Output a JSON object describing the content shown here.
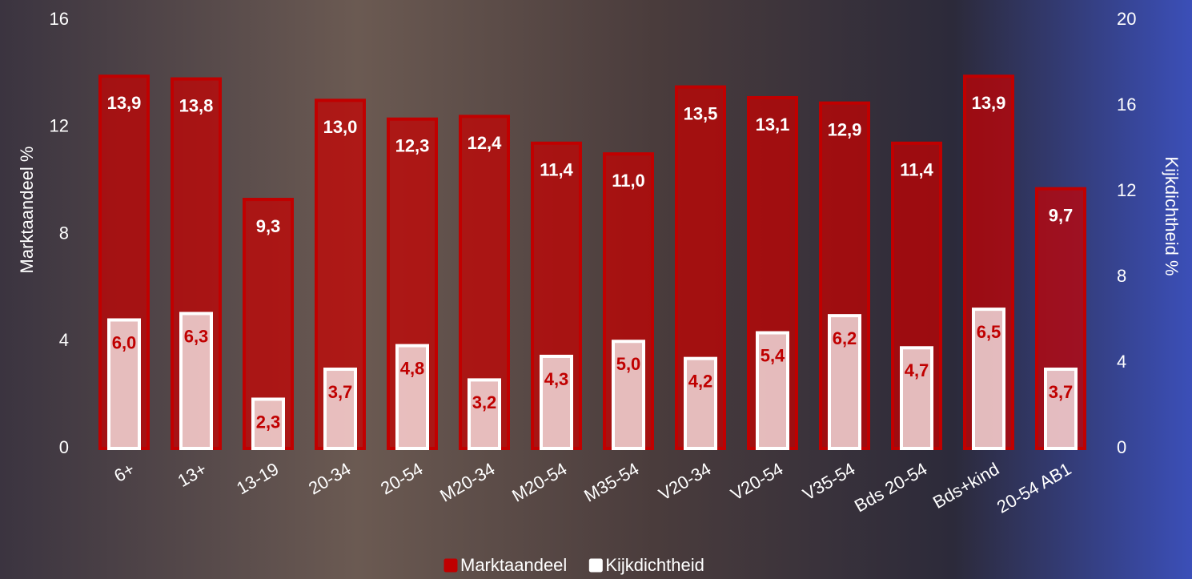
{
  "chart_data": {
    "type": "bar",
    "categories": [
      "6+",
      "13+",
      "13-19",
      "20-34",
      "20-54",
      "M20-34",
      "M20-54",
      "M35-54",
      "V20-34",
      "V20-54",
      "V35-54",
      "Bds 20-54",
      "Bds+kind",
      "20-54 AB1"
    ],
    "series": [
      {
        "name": "Marktaandeel",
        "color": "#c00000",
        "axis": "y",
        "values": [
          13.9,
          13.8,
          9.3,
          13.0,
          12.3,
          12.4,
          11.4,
          11.0,
          13.5,
          13.1,
          12.9,
          11.4,
          13.9,
          9.7
        ],
        "value_labels": [
          "13,9",
          "13,8",
          "9,3",
          "13,0",
          "12,3",
          "12,4",
          "11,4",
          "11,0",
          "13,5",
          "13,1",
          "12,9",
          "11,4",
          "13,9",
          "9,7"
        ]
      },
      {
        "name": "Kijkdichtheid",
        "color": "#ffffff",
        "axis": "y2",
        "values": [
          6.0,
          6.3,
          2.3,
          3.7,
          4.8,
          3.2,
          4.3,
          5.0,
          4.2,
          5.4,
          6.2,
          4.7,
          6.5,
          3.7
        ],
        "value_labels": [
          "6,0",
          "6,3",
          "2,3",
          "3,7",
          "4,8",
          "3,2",
          "4,3",
          "5,0",
          "4,2",
          "5,4",
          "6,2",
          "4,7",
          "6,5",
          "3,7"
        ]
      }
    ],
    "ylabel": "Marktaandeel %",
    "y2label": "Kijkdichtheid %",
    "ylim": [
      0,
      16
    ],
    "yticks": [
      0,
      4,
      8,
      12,
      16
    ],
    "y2lim": [
      0,
      20
    ],
    "y2ticks": [
      0,
      4,
      8,
      12,
      16,
      20
    ],
    "legend": "bottom"
  }
}
